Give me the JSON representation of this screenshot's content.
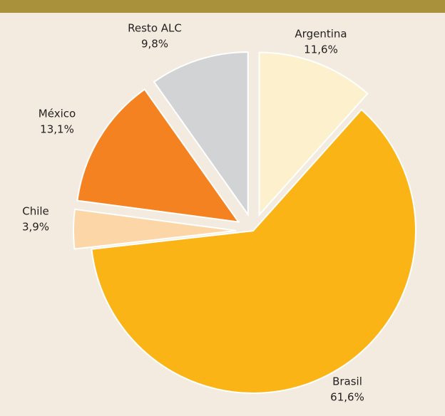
{
  "chart_data": {
    "type": "pie",
    "categories": [
      "Argentina",
      "Brasil",
      "Chile",
      "México",
      "Resto ALC"
    ],
    "values": [
      11.6,
      61.6,
      3.9,
      13.1,
      9.8
    ],
    "value_labels": [
      "11,6%",
      "61,6%",
      "3,9%",
      "13,1%",
      "9,8%"
    ],
    "colors": [
      "#fdf0cc",
      "#fbb415",
      "#fcd6a6",
      "#f58220",
      "#d1d3d4"
    ]
  }
}
